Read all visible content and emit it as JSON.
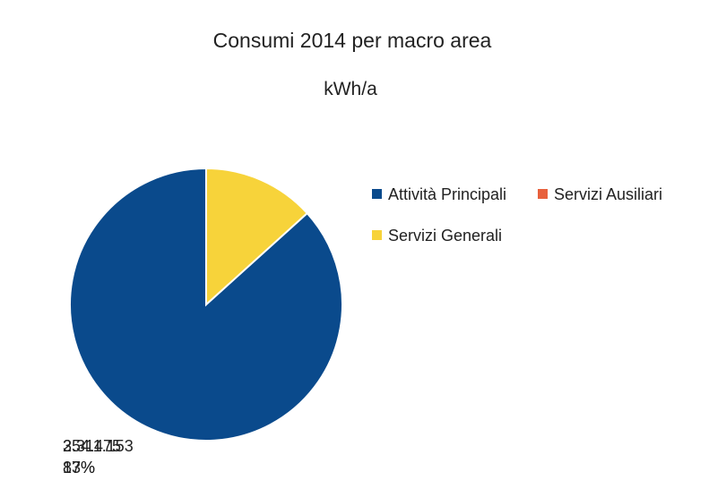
{
  "chart_data": {
    "type": "pie",
    "title": "Consumi 2014 per macro area",
    "subtitle": "kWh/a",
    "series": [
      {
        "name": "Attività Principali",
        "value": 2311153,
        "value_label": "2.311.153",
        "percent_label": "87%",
        "color": "#0a4a8c"
      },
      {
        "name": "Servizi Ausiliari",
        "value": 0,
        "value_label": "",
        "percent_label": "",
        "color": "#e8603c"
      },
      {
        "name": "Servizi Generali",
        "value": 354475,
        "value_label": "354.475",
        "percent_label": "13%",
        "color": "#f7d33a"
      }
    ],
    "legend_position": "right"
  }
}
